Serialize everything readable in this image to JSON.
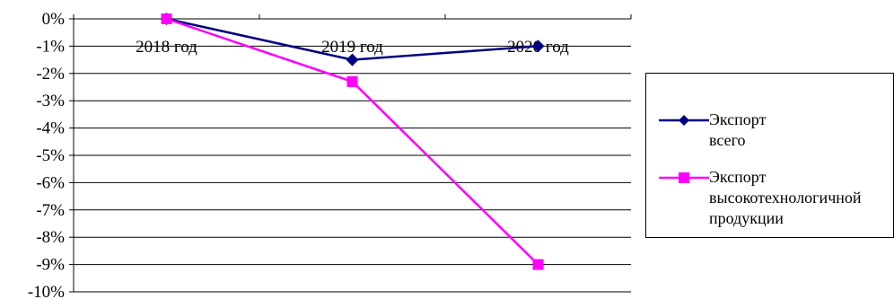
{
  "chart_data": {
    "type": "line",
    "categories": [
      "2018 год",
      "2019 год",
      "2020 год"
    ],
    "series": [
      {
        "name": "Экспорт всего",
        "values": [
          0,
          -1.5,
          -1.0
        ],
        "color": "#000080",
        "marker": "diamond"
      },
      {
        "name": "Экспорт высокотехнологичной продукции",
        "values": [
          0,
          -2.3,
          -9.0
        ],
        "color": "#FF00FF",
        "marker": "square"
      }
    ],
    "y_unit": "%",
    "ylim": [
      -10,
      0
    ],
    "y_ticks": [
      0,
      -1,
      -2,
      -3,
      -4,
      -5,
      -6,
      -7,
      -8,
      -9,
      -10
    ],
    "y_tick_labels": [
      "0%",
      "-1%",
      "-2%",
      "-3%",
      "-4%",
      "-5%",
      "-6%",
      "-7%",
      "-8%",
      "-9%",
      "-10%"
    ],
    "grid": true,
    "legend_position": "right",
    "legend": {
      "items": [
        {
          "label": "Экспорт всего"
        },
        {
          "label": "Экспорт\nвысокотехнологичной\nпродукции"
        }
      ]
    }
  }
}
